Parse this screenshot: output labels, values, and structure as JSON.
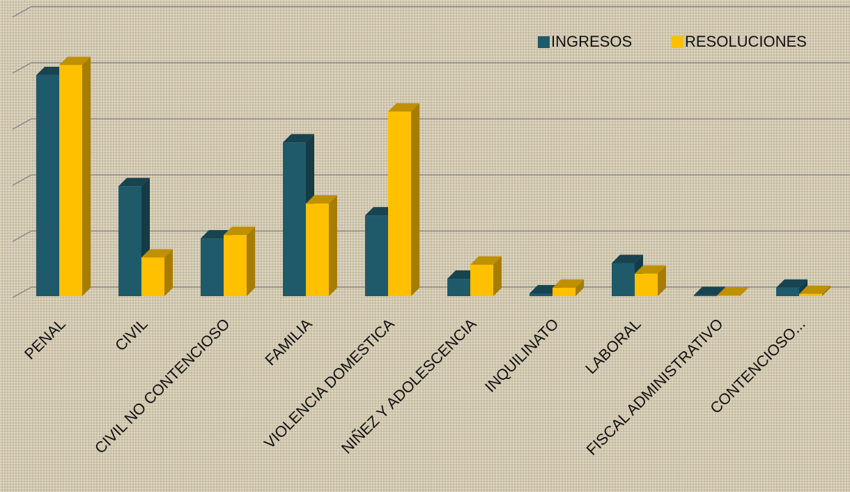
{
  "chart_data": {
    "type": "bar3d",
    "categories": [
      "PENAL",
      "CIVIL",
      "CIVIL NO CONTENCIOSO",
      "FAMILIA",
      "VIOLENCIA DOMESTICA",
      "NIÑEZ Y ADOLESCENCIA",
      "INQUILINATO",
      "LABORAL",
      "FISCAL ADMINISTRATIVO",
      "CONTENCIOSO..."
    ],
    "series": [
      {
        "name": "INGRESOS",
        "color": "#1f5a6b",
        "values": [
          3.94,
          1.96,
          1.03,
          2.74,
          1.44,
          0.31,
          0.05,
          0.59,
          0.02,
          0.15
        ]
      },
      {
        "name": "RESOLUCIONES",
        "color": "#ffc000",
        "values": [
          4.12,
          0.69,
          1.09,
          1.65,
          3.29,
          0.56,
          0.15,
          0.4,
          0.01,
          0.04
        ]
      }
    ],
    "ylim": [
      0,
      5
    ],
    "yticks": [
      0,
      1,
      2,
      3,
      4,
      5
    ],
    "grid": true,
    "legend": "top-right"
  }
}
